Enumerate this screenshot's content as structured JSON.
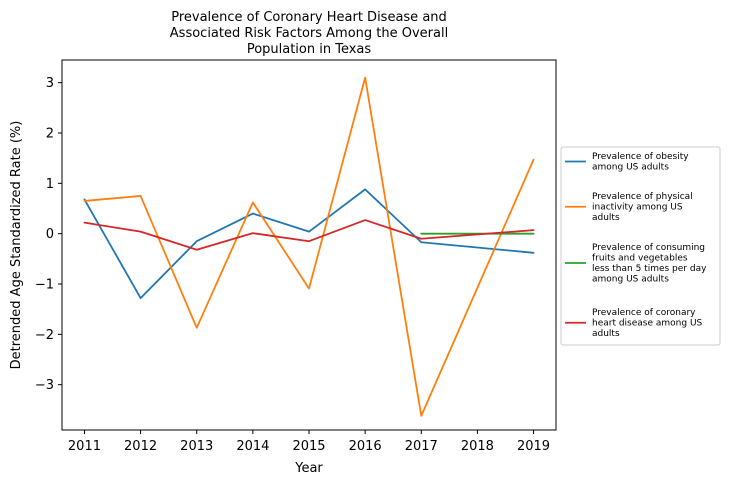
{
  "chart_data": {
    "type": "line",
    "title_lines": [
      "Prevalence of Coronary Heart Disease and",
      "Associated Risk Factors Among the Overall",
      "Population in Texas"
    ],
    "xlabel": "Year",
    "ylabel": "Detrended Age Standardized Rate (%)",
    "x": [
      2011,
      2012,
      2013,
      2014,
      2015,
      2016,
      2017,
      2018,
      2019
    ],
    "xlim": [
      2010.6,
      2019.4
    ],
    "ylim": [
      -3.9,
      3.45
    ],
    "yticks": [
      -3,
      -2,
      -1,
      0,
      1,
      2,
      3
    ],
    "ytick_labels": [
      "−3",
      "−2",
      "−1",
      "0",
      "1",
      "2",
      "3"
    ],
    "grid": false,
    "legend_position": "outside-right",
    "series": [
      {
        "name_lines": [
          "Prevalence of obesity",
          "among US adults"
        ],
        "color": "#1f77b4",
        "x": [
          2011,
          2012,
          2013,
          2014,
          2015,
          2016,
          2017,
          2019
        ],
        "values": [
          0.68,
          -1.28,
          -0.15,
          0.4,
          0.04,
          0.88,
          -0.17,
          -0.38
        ]
      },
      {
        "name_lines": [
          "Prevalence of physical",
          "inactivity among US",
          "adults"
        ],
        "color": "#ff7f0e",
        "x": [
          2011,
          2012,
          2013,
          2014,
          2015,
          2016,
          2017,
          2019
        ],
        "values": [
          0.65,
          0.75,
          -1.87,
          0.62,
          -1.09,
          3.1,
          -3.62,
          1.47
        ]
      },
      {
        "name_lines": [
          "Prevalence of consuming",
          "fruits and vegetables",
          "less than 5 times per day",
          "among US adults"
        ],
        "color": "#2ca02c",
        "x": [
          2017,
          2019
        ],
        "values": [
          0.0,
          0.0
        ]
      },
      {
        "name_lines": [
          "Prevalence of coronary",
          "heart disease among US",
          "adults"
        ],
        "color": "#d62728",
        "x": [
          2011,
          2012,
          2013,
          2014,
          2015,
          2016,
          2017,
          2019
        ],
        "values": [
          0.22,
          0.04,
          -0.32,
          0.01,
          -0.15,
          0.27,
          -0.1,
          0.07
        ]
      }
    ]
  }
}
